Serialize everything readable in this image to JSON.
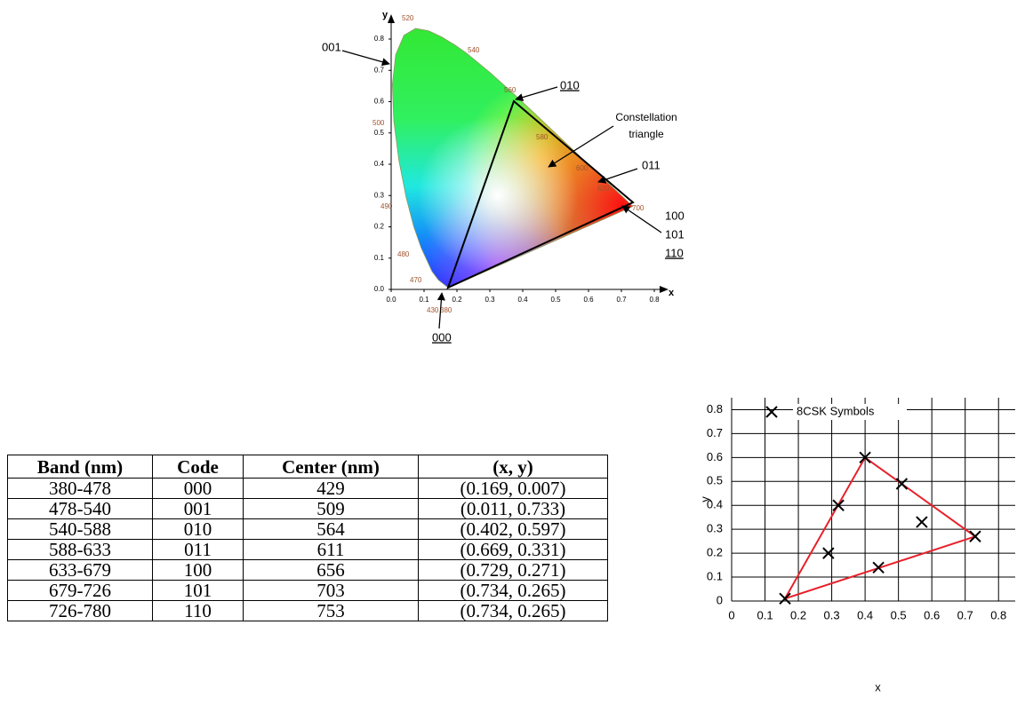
{
  "cie_diagram": {
    "x_label": "x",
    "y_label": "y",
    "xticks": [
      {
        "value": 0,
        "label": "0.0"
      },
      0.1,
      0.2,
      0.3,
      0.4,
      0.5,
      0.6,
      0.7,
      0.8
    ],
    "yticks": [
      {
        "value": 0,
        "label": "0.0"
      },
      0.1,
      0.2,
      0.3,
      0.4,
      0.5,
      0.6,
      0.7,
      0.8
    ],
    "wavelengths": [
      "520",
      "540",
      "560",
      "580",
      "600",
      "620",
      "700",
      "500",
      "490",
      "480",
      "470",
      "430",
      "380"
    ],
    "annotations": {
      "c001": "001",
      "c010": "010",
      "triangle_1": "Constellation",
      "triangle_2": "triangle",
      "c011": "011",
      "c100": "100",
      "c101": "101",
      "c110": "110",
      "c000": "000"
    }
  },
  "table": {
    "header": [
      "Band (nm)",
      "Code",
      "Center (nm)",
      "(x, y)"
    ],
    "rows": [
      [
        "380-478",
        "000",
        "429",
        "(0.169, 0.007)"
      ],
      [
        "478-540",
        "001",
        "509",
        "(0.011, 0.733)"
      ],
      [
        "540-588",
        "010",
        "564",
        "(0.402, 0.597)"
      ],
      [
        "588-633",
        "011",
        "611",
        "(0.669, 0.331)"
      ],
      [
        "633-679",
        "100",
        "656",
        "(0.729, 0.271)"
      ],
      [
        "679-726",
        "101",
        "703",
        "(0.734, 0.265)"
      ],
      [
        "726-780",
        "110",
        "753",
        "(0.734, 0.265)"
      ]
    ]
  },
  "chart_data": {
    "type": "scatter",
    "x_label": "x",
    "y_label": "y",
    "xlim": [
      0,
      0.85
    ],
    "ylim": [
      0,
      0.85
    ],
    "xticks": [
      0,
      0.1,
      0.2,
      0.3,
      0.4,
      0.5,
      0.6,
      0.7,
      0.8
    ],
    "yticks": [
      0,
      0.1,
      0.2,
      0.3,
      0.4,
      0.5,
      0.6,
      0.7,
      0.8
    ],
    "grid": true,
    "series": [
      {
        "name": "8CSK Symbols",
        "color": "#000000",
        "x": [
          0.16,
          0.4,
          0.51,
          0.32,
          0.57,
          0.73,
          0.29,
          0.44
        ],
        "values": [
          0.01,
          0.6,
          0.49,
          0.4,
          0.33,
          0.27,
          0.2,
          0.14
        ]
      }
    ],
    "lines": [
      {
        "color": "#e8202a",
        "x": [
          0.16,
          0.4,
          0.73,
          0.16
        ],
        "values": [
          0.01,
          0.6,
          0.27,
          0.01
        ]
      }
    ]
  }
}
